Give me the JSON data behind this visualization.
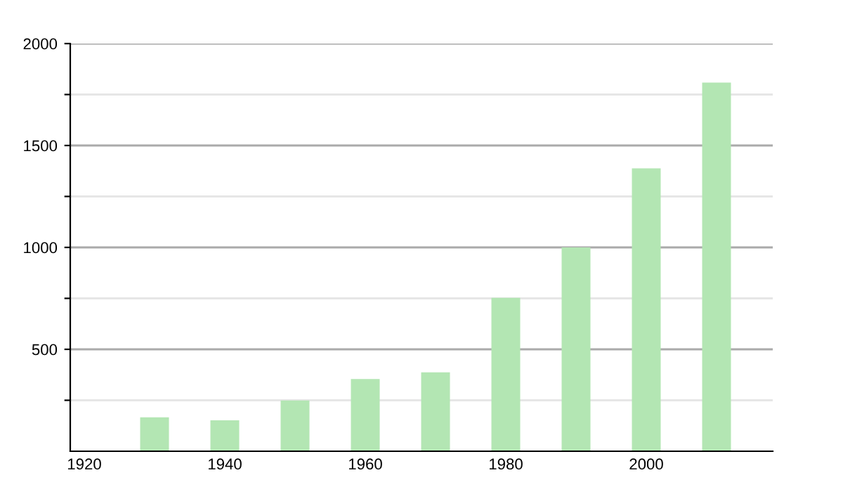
{
  "chart_data": {
    "type": "bar",
    "x": [
      1930,
      1940,
      1950,
      1960,
      1970,
      1980,
      1990,
      2000,
      2010
    ],
    "values": [
      166,
      152,
      249,
      354,
      387,
      753,
      1000,
      1388,
      1809
    ],
    "color": "#b3e6b3",
    "xlim": [
      1918,
      2018
    ],
    "xticks": [
      1920,
      1940,
      1960,
      1980,
      2000
    ],
    "ylim": [
      0,
      2000
    ],
    "yticks": [
      {
        "value": 250,
        "label": null
      },
      500,
      {
        "value": 750,
        "label": null
      },
      1000,
      {
        "value": 1250,
        "label": null
      },
      1500,
      {
        "value": 1750,
        "label": null
      },
      2000
    ],
    "grid": "y"
  }
}
